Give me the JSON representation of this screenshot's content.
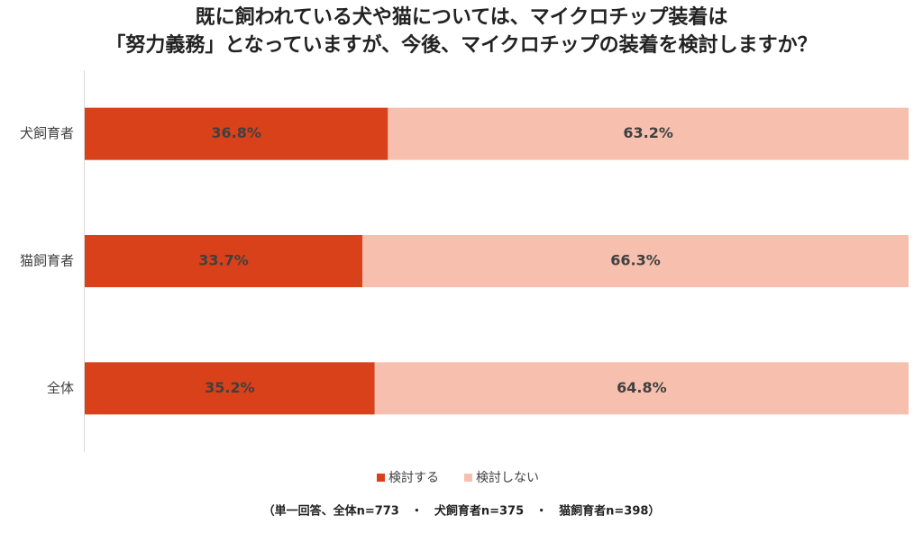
{
  "chart_data": {
    "type": "stacked-bar-horizontal",
    "title": [
      "既に飼われている犬や猫については、マイクロチップ装着は",
      "「努力義務」となっていますが、今後、マイクロチップの装着を検討しますか？"
    ],
    "categories": [
      "犬飼育者",
      "猫飼育者",
      "全体"
    ],
    "series": [
      {
        "name": "検討する",
        "color": "#d9411a",
        "values": [
          36.8,
          33.7,
          35.2
        ],
        "value_labels": [
          "36.8%",
          "33.7%",
          "35.2%"
        ]
      },
      {
        "name": "検討しない",
        "color": "#f7c0ae",
        "values": [
          63.2,
          66.3,
          64.8
        ],
        "value_labels": [
          "63.2%",
          "66.3%",
          "64.8%"
        ]
      }
    ],
    "xlim": [
      0,
      100
    ],
    "footnote": "（単一回答、全体n=773　・　犬飼育者n=375　・　猫飼育者n=398）"
  }
}
